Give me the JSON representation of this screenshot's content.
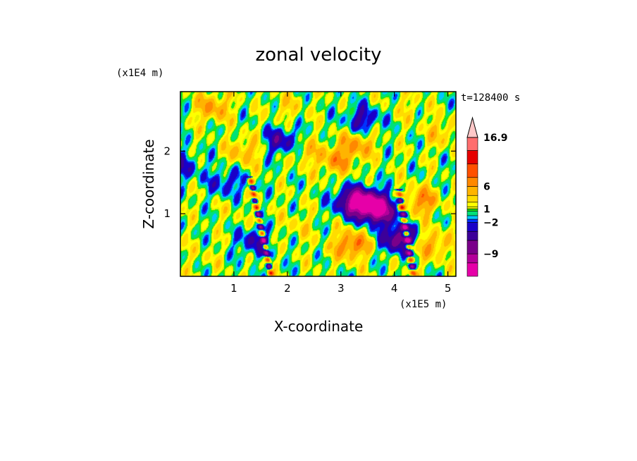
{
  "chart_data": {
    "type": "heatmap",
    "title": "zonal velocity",
    "xlabel": "X-coordinate",
    "ylabel": "Z-coordinate",
    "x_unit": "(x1E5 m)",
    "y_unit": "(x1E4 m)",
    "time_label": "t=128400 s",
    "xlim": [
      0,
      5.15
    ],
    "ylim": [
      0,
      2.95
    ],
    "x_ticks": [
      "1",
      "2",
      "3",
      "4",
      "5"
    ],
    "x_tick_values": [
      1,
      2,
      3,
      4,
      5
    ],
    "y_ticks": [
      "1",
      "2"
    ],
    "y_tick_values": [
      1,
      2
    ],
    "colorbar": {
      "labels": [
        "16.9",
        "6",
        "1",
        "−2",
        "−9"
      ],
      "label_values": [
        16.9,
        6,
        1,
        -2,
        -9
      ],
      "levels": [
        -14,
        -11,
        -9,
        -6,
        -4,
        -2,
        -1.3,
        -0.5,
        0.5,
        1,
        1.5,
        2.5,
        4,
        6,
        8,
        11,
        14,
        16.9
      ],
      "colors": [
        "#e600a8",
        "#b4009a",
        "#7a008a",
        "#3c0099",
        "#1a00c8",
        "#0033ff",
        "#00c8ff",
        "#00e07a",
        "#19e619",
        "#e6f000",
        "#ffff00",
        "#ffdc00",
        "#ffb400",
        "#ff8800",
        "#ff5000",
        "#e60000",
        "#ff6e6e",
        "#ffa0a0",
        "#ffc8c8"
      ]
    },
    "field_features": [
      {
        "x": 3.5,
        "z": 1.15,
        "value": -11
      },
      {
        "x": 3.2,
        "z": 1.2,
        "value": -8
      },
      {
        "x": 3.75,
        "z": 1.05,
        "value": -9
      },
      {
        "x": 1.9,
        "z": 2.15,
        "value": -6
      },
      {
        "x": 4.1,
        "z": 0.6,
        "value": -9
      },
      {
        "x": 1.4,
        "z": 0.55,
        "value": -5
      },
      {
        "x": 0.85,
        "z": 1.5,
        "value": -4
      },
      {
        "x": 3.4,
        "z": 2.5,
        "value": -5
      },
      {
        "x": 0.05,
        "z": 1.75,
        "value": -4
      },
      {
        "x": 3.2,
        "z": 0.5,
        "value": 7
      },
      {
        "x": 3.3,
        "z": 2.1,
        "value": 5
      },
      {
        "x": 4.5,
        "z": 1.2,
        "value": 6
      },
      {
        "x": 4.7,
        "z": 0.5,
        "value": 5
      },
      {
        "x": 0.6,
        "z": 2.7,
        "value": 5
      },
      {
        "x": 2.3,
        "z": 2.0,
        "value": 3
      },
      {
        "x": 2.9,
        "z": 1.85,
        "value": 5
      },
      {
        "x": 1.2,
        "z": 2.0,
        "value": 4
      },
      {
        "x": 0.4,
        "z": 0.3,
        "value": 1
      },
      {
        "x": 2.2,
        "z": 0.8,
        "value": 1.8
      },
      {
        "x": 1.0,
        "z": 1.0,
        "value": 0.8
      },
      {
        "x": 4.9,
        "z": 2.3,
        "value": 3
      },
      {
        "x": 2.0,
        "z": 2.7,
        "value": 2
      },
      {
        "x": 2.7,
        "z": 0.3,
        "value": 0.3
      },
      {
        "x": 4.3,
        "z": 2.7,
        "value": 1.5
      }
    ]
  }
}
